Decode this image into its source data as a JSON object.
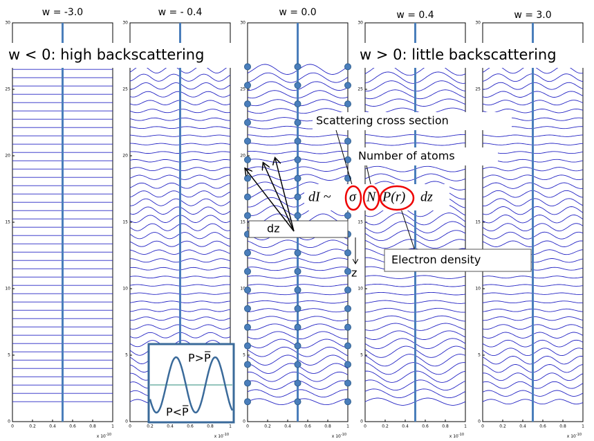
{
  "panels": [
    {
      "title": "w = -3.0"
    },
    {
      "title": "w = - 0.4"
    },
    {
      "title": "w = 0.0"
    },
    {
      "title": "w = 0.4"
    },
    {
      "title": "w = 3.0"
    }
  ],
  "yticks": [
    "0",
    "5",
    "10",
    "15",
    "20",
    "25",
    "30"
  ],
  "xticks": [
    "0",
    "0.2",
    "0.4",
    "0.6",
    "0.8",
    "1"
  ],
  "x_multiplier": "x 10",
  "x_exponent": "-10",
  "annotations": {
    "left": "w < 0: high backscattering",
    "right": "w > 0: little backscattering",
    "cross_section": "Scattering cross section",
    "atoms": "Number of atoms",
    "density": "Electron density",
    "dz_box": "dz",
    "z_axis": "z"
  },
  "formula": {
    "lhs": "dI ~",
    "sigma": "σ",
    "N": "N",
    "P": "P(r)",
    "dz": "dz"
  },
  "inset": {
    "upper": "P>P̅",
    "lower": "P<P̅"
  }
}
